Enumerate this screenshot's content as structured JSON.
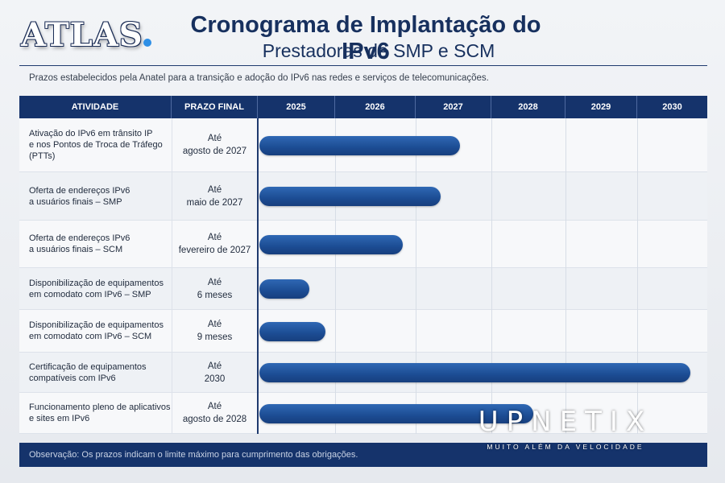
{
  "brand": {
    "logo": "ATLAS",
    "accent_color": "#2e8fe6"
  },
  "header": {
    "title": "Cronograma de Implantação do IPv6",
    "subtitle": "Prestadoras de SMP e SCM",
    "intro": "Prazos estabelecidos pela Anatel para a transição e adoção do IPv6 nas redes e serviços de telecomunicações."
  },
  "chart_data": {
    "type": "gantt",
    "title": "Cronograma de Implantação do IPv6",
    "subtitle": "Prestadoras de SMP e SCM",
    "columns": {
      "activity": "ATIVIDADE",
      "deadline": "PRAZO FINAL"
    },
    "years": [
      "2025",
      "2026",
      "2027",
      "2028",
      "2029",
      "2030"
    ],
    "bar_color": "#1c4c93",
    "tasks": [
      {
        "activity": "Ativação do IPv6 em trânsito IP\ne nos Pontos de Troca de Tráfego\n(PTTs)",
        "deadline": "Até\nagosto de 2027",
        "end_year": 2027.58
      },
      {
        "activity": "Oferta de endereços IPv6\na usuários finais – SMP",
        "deadline": "Até\nmaio de 2027",
        "end_year": 2027.33
      },
      {
        "activity": "Oferta de endereços IPv6\na usuários finais – SCM",
        "deadline": "Até\nfevereiro de 2027",
        "end_year": 2026.84
      },
      {
        "activity": "Disponibilização de equipamentos\nem comodato com IPv6 – SMP",
        "deadline": "Até\n6 meses",
        "end_year": 2025.67
      },
      {
        "activity": "Disponibilização de equipamentos\nem comodato com IPv6 – SCM",
        "deadline": "Até\n9 meses",
        "end_year": 2025.87
      },
      {
        "activity": "Certificação de equipamentos\ncompatíveis com IPv6",
        "deadline": "Até\n2030",
        "end_year": 2030.76
      },
      {
        "activity": "Funcionamento pleno de aplicativos\ne sites em IPv6",
        "deadline": "Até\nagosto de 2028",
        "end_year": 2028.57
      }
    ]
  },
  "footer": {
    "note": "Observação: Os prazos indicam o limite máximo para cumprimento das obrigações."
  },
  "watermark": {
    "name": "UPNETIX",
    "tagline": "MUITO ALÉM DA VELOCIDADE"
  }
}
